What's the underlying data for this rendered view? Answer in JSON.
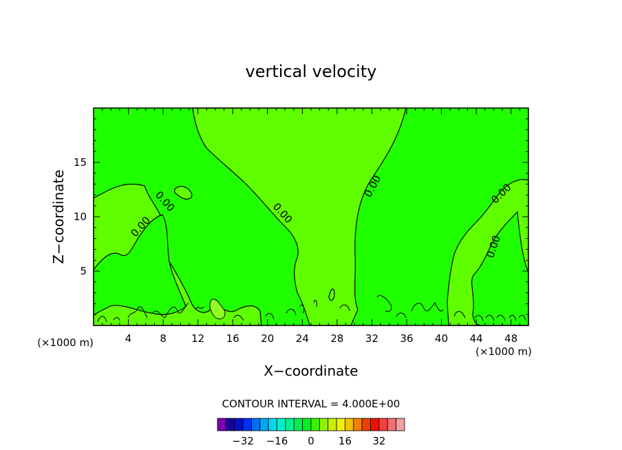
{
  "chart_data": {
    "type": "contour",
    "title": "vertical velocity",
    "xlabel": "X−coordinate",
    "ylabel": "Z−coordinate",
    "x_unit_left": "(×1000 m)",
    "x_unit_right": "(×1000 m)",
    "xlim": [
      0,
      50
    ],
    "ylim": [
      0,
      20
    ],
    "x_ticks": [
      4,
      8,
      12,
      16,
      20,
      24,
      28,
      32,
      36,
      40,
      44,
      48
    ],
    "x_tick_labels": [
      "4",
      "8",
      "12",
      "16",
      "20",
      "24",
      "28",
      "32",
      "36",
      "40",
      "44",
      "48"
    ],
    "y_ticks": [
      5,
      10,
      15
    ],
    "y_tick_labels": [
      "5",
      "10",
      "15"
    ],
    "contour_labels": [
      "0.00",
      "0.00",
      "0.00",
      "0.00",
      "0.00",
      "0.00"
    ],
    "contour_interval_text": "CONTOUR INTERVAL = 4.000E+00",
    "fill_colors": {
      "background_band": "#20ff00",
      "positive_band": "#60ff00",
      "strong_band": "#90ff20"
    },
    "colorbar": {
      "colors": [
        "#7a00b0",
        "#1a00a0",
        "#0010c8",
        "#0030f0",
        "#0070f0",
        "#00a8f0",
        "#00d8f0",
        "#00f0c8",
        "#00f090",
        "#00f050",
        "#00f020",
        "#40f000",
        "#90f000",
        "#c8f000",
        "#f0f000",
        "#f0c000",
        "#f08000",
        "#f04000",
        "#f01000",
        "#f04040",
        "#f07070",
        "#f0a0a0"
      ],
      "tick_labels": [
        "−32",
        "−16",
        "0",
        "16",
        "32"
      ],
      "tick_values": [
        -32,
        -16,
        0,
        16,
        32
      ]
    }
  }
}
